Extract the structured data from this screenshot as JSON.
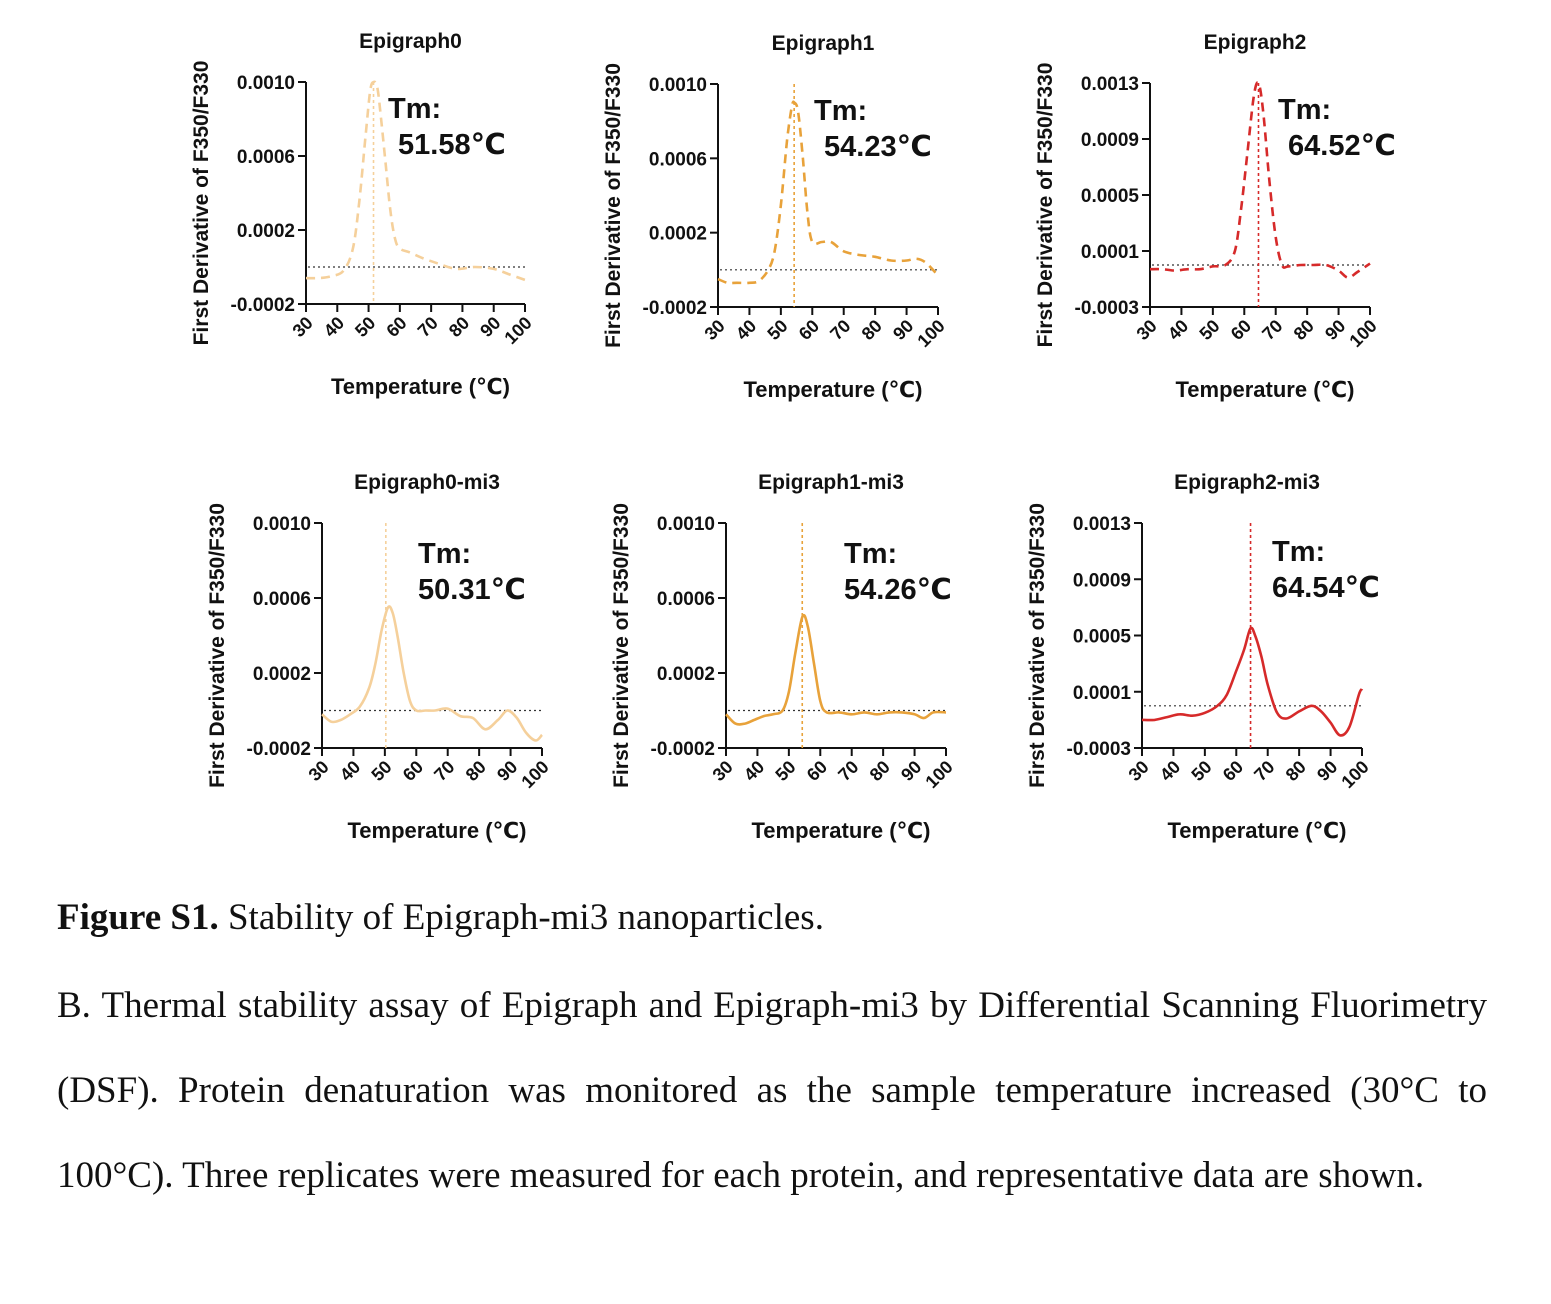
{
  "chart_data": [
    {
      "type": "line",
      "title": "Epigraph0",
      "xlabel": "Temperature (℃)",
      "ylabel": "First Derivative of F350/F330",
      "xlim": [
        30,
        100
      ],
      "ylim": [
        -0.0002,
        0.001
      ],
      "xticks": [
        "30",
        "40",
        "50",
        "60",
        "70",
        "80",
        "90",
        "100"
      ],
      "yticks": [
        "-0.0002",
        "0.0002",
        "0.0006",
        "0.0010"
      ],
      "ytick_values": [
        -0.0002,
        0.0002,
        0.0006,
        0.001
      ],
      "baseline": 0,
      "tm_label": "Tm:",
      "tm_value": "51.58℃",
      "tm": 51.58,
      "line_style": "dashed",
      "color": "#f5d09b",
      "series": [
        {
          "name": "Epigraph0",
          "x": [
            30,
            34,
            38,
            42,
            45,
            47,
            49,
            50.5,
            51.6,
            52.8,
            54,
            55.5,
            57,
            58.5,
            60,
            63,
            67,
            72,
            78,
            84,
            90,
            95,
            100
          ],
          "y": [
            -6e-05,
            -6e-05,
            -5e-05,
            -2e-05,
            0.0001,
            0.00035,
            0.0007,
            0.00095,
            0.001,
            0.00097,
            0.0008,
            0.00055,
            0.0003,
            0.00015,
            0.0001,
            8e-05,
            5e-05,
            2e-05,
            -1e-05,
            0.0,
            -1e-05,
            -4e-05,
            -7e-05
          ]
        }
      ]
    },
    {
      "type": "line",
      "title": "Epigraph1",
      "xlabel": "Temperature (℃)",
      "ylabel": "First Derivative of F350/F330",
      "xlim": [
        30,
        100
      ],
      "ylim": [
        -0.0002,
        0.001
      ],
      "xticks": [
        "30",
        "40",
        "50",
        "60",
        "70",
        "80",
        "90",
        "100"
      ],
      "yticks": [
        "-0.0002",
        "0.0002",
        "0.0006",
        "0.0010"
      ],
      "ytick_values": [
        -0.0002,
        0.0002,
        0.0006,
        0.001
      ],
      "baseline": 0,
      "tm_label": "Tm:",
      "tm_value": "54.23℃",
      "tm": 54.23,
      "line_style": "dashed",
      "color": "#e8a23a",
      "series": [
        {
          "name": "Epigraph1",
          "x": [
            30,
            33,
            36,
            40,
            43,
            46,
            48,
            50,
            52,
            53.5,
            54.3,
            55.5,
            57,
            58.5,
            60,
            63,
            66,
            70,
            75,
            80,
            85,
            90,
            93,
            96,
            100
          ],
          "y": [
            -5e-05,
            -7e-05,
            -7e-05,
            -7e-05,
            -6e-05,
            0.0,
            0.0001,
            0.00035,
            0.0007,
            0.00088,
            0.0009,
            0.00085,
            0.0006,
            0.0003,
            0.00015,
            0.00015,
            0.00015,
            0.0001,
            8e-05,
            7e-05,
            5e-05,
            5e-05,
            6e-05,
            4e-05,
            -3e-05
          ]
        }
      ]
    },
    {
      "type": "line",
      "title": "Epigraph2",
      "xlabel": "Temperature (℃)",
      "ylabel": "First Derivative of F350/F330",
      "xlim": [
        30,
        100
      ],
      "ylim": [
        -0.0003,
        0.0013
      ],
      "xticks": [
        "30",
        "40",
        "50",
        "60",
        "70",
        "80",
        "90",
        "100"
      ],
      "yticks": [
        "-0.0003",
        "0.0001",
        "0.0005",
        "0.0009",
        "0.0013"
      ],
      "ytick_values": [
        -0.0003,
        0.0001,
        0.0005,
        0.0009,
        0.0013
      ],
      "baseline": 0,
      "tm_label": "Tm:",
      "tm_value": "64.52℃",
      "tm": 64.52,
      "line_style": "dashed",
      "color": "#d62a2a",
      "series": [
        {
          "name": "Epigraph2",
          "x": [
            30,
            34,
            38,
            42,
            46,
            50,
            54,
            57,
            59,
            61,
            63,
            64.5,
            66,
            68,
            70,
            72,
            74,
            78,
            82,
            86,
            90,
            93,
            96,
            100
          ],
          "y": [
            -3e-05,
            -3e-05,
            -4e-05,
            -3e-05,
            -3e-05,
            -1e-05,
            0.0,
            0.0001,
            0.0004,
            0.0008,
            0.0012,
            0.0013,
            0.0011,
            0.0006,
            0.0002,
            0.0,
            -1e-05,
            0.0,
            0.0,
            0.0,
            -4e-05,
            -9e-05,
            -5e-05,
            1e-05
          ]
        }
      ]
    },
    {
      "type": "line",
      "title": "Epigraph0-mi3",
      "xlabel": "Temperature (℃)",
      "ylabel": "First Derivative of F350/F330",
      "xlim": [
        30,
        100
      ],
      "ylim": [
        -0.0002,
        0.001
      ],
      "xticks": [
        "30",
        "40",
        "50",
        "60",
        "70",
        "80",
        "90",
        "100"
      ],
      "yticks": [
        "-0.0002",
        "0.0002",
        "0.0006",
        "0.0010"
      ],
      "ytick_values": [
        -0.0002,
        0.0002,
        0.0006,
        0.001
      ],
      "baseline": 0,
      "tm_label": "Tm:",
      "tm_value": "50.31℃",
      "tm": 50.31,
      "line_style": "solid",
      "color": "#f5d09b",
      "series": [
        {
          "name": "Epigraph0-mi3",
          "x": [
            30,
            33,
            36,
            39,
            42,
            45,
            47,
            49,
            51,
            52.5,
            54,
            56,
            58,
            60,
            63,
            66,
            70,
            74,
            78,
            82,
            86,
            89,
            92,
            95,
            98,
            100
          ],
          "y": [
            -2e-05,
            -6e-05,
            -5e-05,
            -2e-05,
            2e-05,
            0.00012,
            0.00025,
            0.00043,
            0.00055,
            0.00052,
            0.0004,
            0.0002,
            5e-05,
            0.0,
            0.0,
            0.0,
            1e-05,
            -3e-05,
            -4e-05,
            -0.0001,
            -5e-05,
            0.0,
            -4e-05,
            -0.00012,
            -0.00016,
            -0.00013
          ]
        }
      ]
    },
    {
      "type": "line",
      "title": "Epigraph1-mi3",
      "xlabel": "Temperature (℃)",
      "ylabel": "First Derivative of F350/F330",
      "xlim": [
        30,
        100
      ],
      "ylim": [
        -0.0002,
        0.001
      ],
      "xticks": [
        "30",
        "40",
        "50",
        "60",
        "70",
        "80",
        "90",
        "100"
      ],
      "yticks": [
        "-0.0002",
        "0.0002",
        "0.0006",
        "0.0010"
      ],
      "ytick_values": [
        -0.0002,
        0.0002,
        0.0006,
        0.001
      ],
      "baseline": 0,
      "tm_label": "Tm:",
      "tm_value": "54.26℃",
      "tm": 54.26,
      "line_style": "solid",
      "color": "#e8a23a",
      "series": [
        {
          "name": "Epigraph1-mi3",
          "x": [
            30,
            33,
            36,
            39,
            42,
            45,
            48,
            50,
            52,
            54.3,
            56,
            58,
            60,
            62,
            66,
            70,
            74,
            78,
            82,
            86,
            90,
            93,
            96,
            100
          ],
          "y": [
            -2e-05,
            -7e-05,
            -7e-05,
            -5e-05,
            -3e-05,
            -2e-05,
            0.0,
            0.0001,
            0.0003,
            0.0005,
            0.00045,
            0.00025,
            5e-05,
            -1e-05,
            -1e-05,
            -2e-05,
            -1e-05,
            -2e-05,
            -1e-05,
            -1e-05,
            -2e-05,
            -4e-05,
            -1e-05,
            -1e-05
          ]
        }
      ]
    },
    {
      "type": "line",
      "title": "Epigraph2-mi3",
      "xlabel": "Temperature (℃)",
      "ylabel": "First Derivative of F350/F330",
      "xlim": [
        30,
        100
      ],
      "ylim": [
        -0.0003,
        0.0013
      ],
      "xticks": [
        "30",
        "40",
        "50",
        "60",
        "70",
        "80",
        "90",
        "100"
      ],
      "yticks": [
        "-0.0003",
        "0.0001",
        "0.0005",
        "0.0009",
        "0.0013"
      ],
      "ytick_values": [
        -0.0003,
        0.0001,
        0.0005,
        0.0009,
        0.0013
      ],
      "baseline": 0,
      "tm_label": "Tm:",
      "tm_value": "64.54℃",
      "tm": 64.54,
      "line_style": "solid",
      "color": "#d62a2a",
      "series": [
        {
          "name": "Epigraph2-mi3",
          "x": [
            30,
            34,
            38,
            42,
            46,
            50,
            54,
            57,
            60,
            62.5,
            64.5,
            66,
            68,
            70,
            73,
            76,
            80,
            84,
            87,
            90,
            93,
            96,
            99,
            100
          ],
          "y": [
            -0.0001,
            -0.0001,
            -8e-05,
            -6e-05,
            -7e-05,
            -5e-05,
            0.0,
            8e-05,
            0.00025,
            0.0004,
            0.00055,
            0.0005,
            0.00035,
            0.00015,
            -5e-05,
            -9e-05,
            -4e-05,
            0.0,
            -4e-05,
            -0.00012,
            -0.00021,
            -0.00015,
            8e-05,
            0.00012
          ]
        }
      ]
    }
  ],
  "caption": {
    "label": "Figure S1.",
    "title": "Stability of Epigraph-mi3 nanoparticles.",
    "body": "B. Thermal stability assay of Epigraph and Epigraph-mi3 by Differential Scanning Fluorimetry (DSF). Protein denaturation was monitored as the sample temperature increased (30°C to 100°C). Three replicates were measured for each protein, and representative data are shown."
  }
}
